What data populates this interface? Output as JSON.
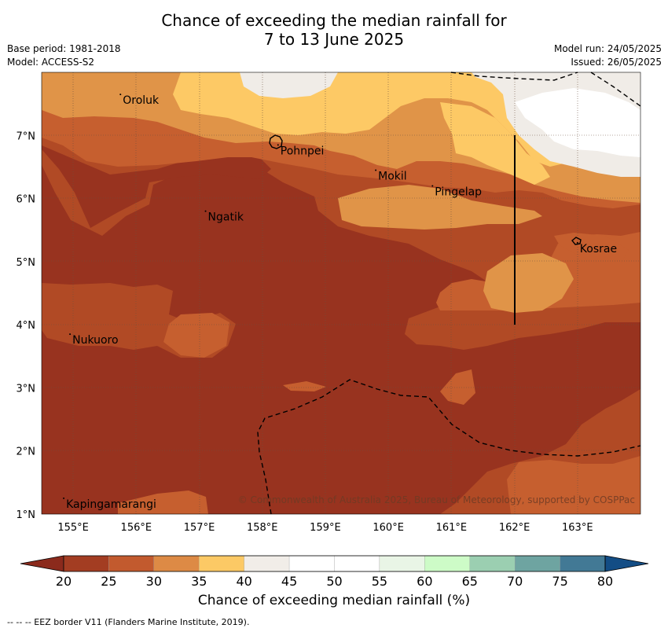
{
  "title_line1": "Chance of exceeding the median rainfall for",
  "title_line2": "7 to 13 June 2025",
  "base_period": "Base period: 1981-2018",
  "model": "Model: ACCESS-S2",
  "model_run": "Model run: 24/05/2025",
  "issued": "Issued: 26/05/2025",
  "copyright": "© Commonwealth of Australia 2025, Bureau of Meteorology, supported by COSPPac",
  "colorbar_label": "Chance of exceeding median rainfall (%)",
  "footnote": "--  --  -- EEZ border V11 (Flanders Marine Institute, 2019).",
  "lon_ticks": [
    {
      "value": 155,
      "label": "155°E"
    },
    {
      "value": 156,
      "label": "156°E"
    },
    {
      "value": 157,
      "label": "157°E"
    },
    {
      "value": 158,
      "label": "158°E"
    },
    {
      "value": 159,
      "label": "159°E"
    },
    {
      "value": 160,
      "label": "160°E"
    },
    {
      "value": 161,
      "label": "161°E"
    },
    {
      "value": 162,
      "label": "162°E"
    },
    {
      "value": 163,
      "label": "163°E"
    }
  ],
  "lat_ticks": [
    {
      "value": 1,
      "label": "1°N"
    },
    {
      "value": 2,
      "label": "2°N"
    },
    {
      "value": 3,
      "label": "3°N"
    },
    {
      "value": 4,
      "label": "4°N"
    },
    {
      "value": 5,
      "label": "5°N"
    },
    {
      "value": 6,
      "label": "6°N"
    },
    {
      "value": 7,
      "label": "7°N"
    }
  ],
  "extent": {
    "lon_min": 154.5,
    "lon_max": 164.0,
    "lat_min": 1.0,
    "lat_max": 8.0
  },
  "places": [
    {
      "name": "Oroluk",
      "lon": 155.75,
      "lat": 7.65
    },
    {
      "name": "Pohnpei",
      "lon": 158.25,
      "lat": 6.85
    },
    {
      "name": "Mokil",
      "lon": 159.8,
      "lat": 6.45
    },
    {
      "name": "Pingelap",
      "lon": 160.7,
      "lat": 6.2
    },
    {
      "name": "Ngatik",
      "lon": 157.1,
      "lat": 5.8
    },
    {
      "name": "Kosrae",
      "lon": 163.0,
      "lat": 5.3
    },
    {
      "name": "Nukuoro",
      "lon": 154.95,
      "lat": 3.85
    },
    {
      "name": "Kapingamarangi",
      "lon": 154.85,
      "lat": 1.25
    }
  ],
  "colorbar": {
    "ticks": [
      "20",
      "25",
      "30",
      "35",
      "40",
      "45",
      "50",
      "55",
      "60",
      "65",
      "70",
      "75",
      "80"
    ],
    "under_color": "#8b2a1c",
    "over_color": "#134d85",
    "colors": [
      "#a33d22",
      "#c25a2e",
      "#dd8a45",
      "#fcc965",
      "#f1ede8",
      "#ffffff",
      "#ffffff",
      "#e9f5e6",
      "#cdfbc7",
      "#9bcfb1",
      "#6ea4a1",
      "#427995"
    ]
  },
  "chart_data": {
    "type": "heatmap",
    "title": "Chance of exceeding the median rainfall for 7 to 13 June 2025",
    "xlabel": "",
    "ylabel": "",
    "colorbar_title": "Chance of exceeding median rainfall (%)",
    "xlim": [
      154.5,
      164.0
    ],
    "ylim": [
      1.0,
      8.0
    ],
    "x_tick_labels": [
      "155°E",
      "156°E",
      "157°E",
      "158°E",
      "159°E",
      "160°E",
      "161°E",
      "162°E",
      "163°E"
    ],
    "y_tick_labels": [
      "1°N",
      "2°N",
      "3°N",
      "4°N",
      "5°N",
      "6°N",
      "7°N"
    ],
    "color_levels": [
      20,
      25,
      30,
      35,
      40,
      45,
      50,
      55,
      60,
      65,
      70,
      75,
      80
    ]
  }
}
